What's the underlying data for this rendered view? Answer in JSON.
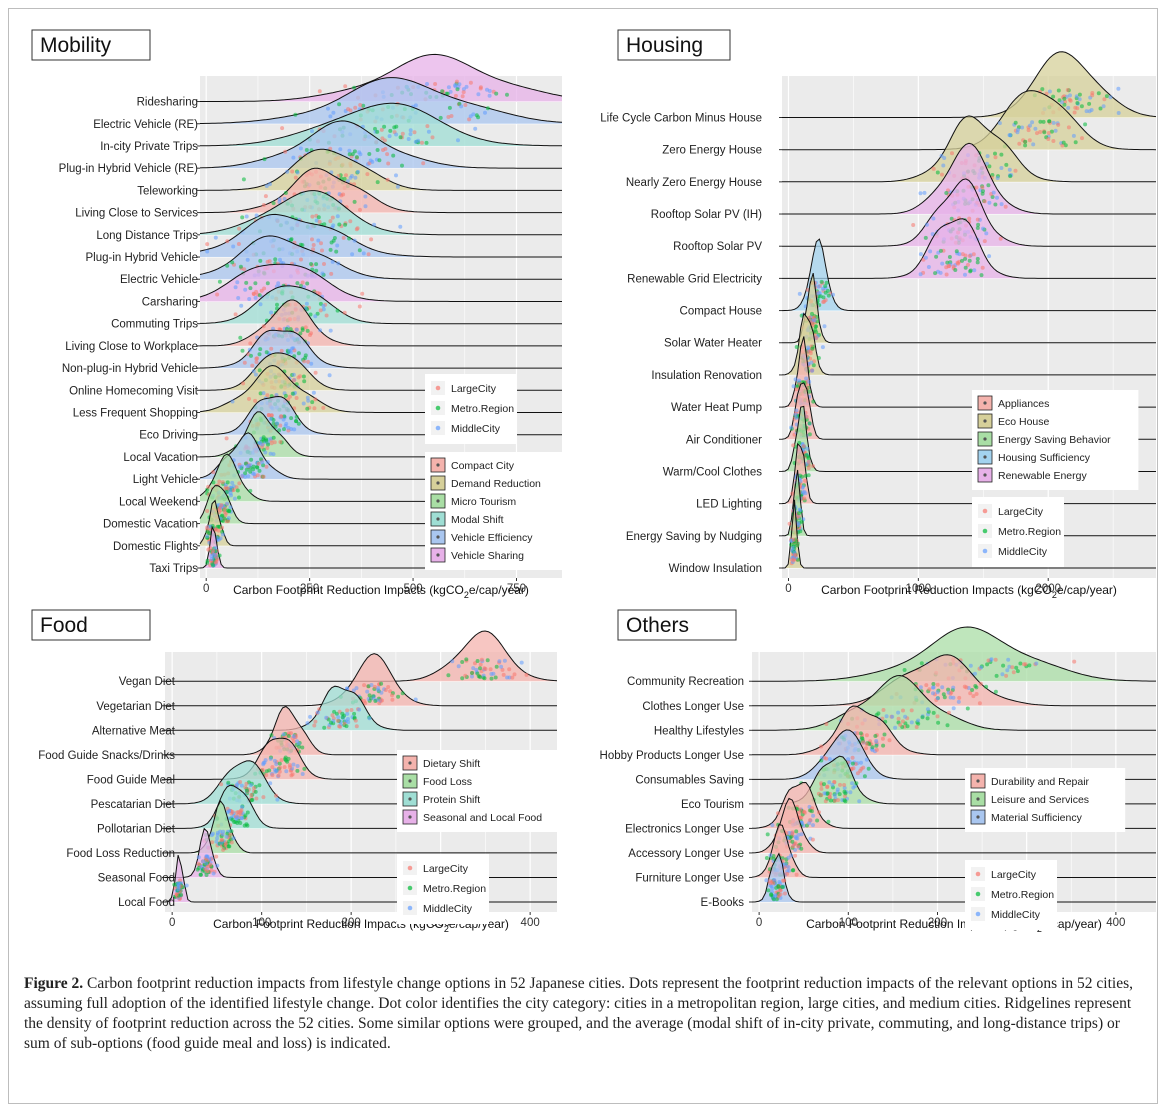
{
  "figure": {
    "label": "Figure 2.",
    "caption": "Carbon footprint reduction impacts from lifestyle change options in 52 Japanese cities. Dots represent the footprint reduction impacts of the relevant options in 52 cities, assuming full adoption of the identified lifestyle change. Dot color identifies the city category: cities in a metropolitan region, large cities, and medium cities. Ridgelines represent the density of footprint reduction across the 52 cities. Some similar options were grouped, and the average (modal shift of in-city private, commuting, and long-distance trips) or sum of sub-options (food guide meal and loss) is indicated."
  },
  "colors": {
    "LargeCity": "#f8766d",
    "Metro.Region": "#00ba38",
    "MiddleCity": "#619cff",
    "panel_bg": "#ebebeb",
    "grid": "#ffffff"
  },
  "chart_data": [
    {
      "type": "ridgeline",
      "title": "Mobility",
      "xlabel_main": "Carbon Footprint Reduction Impacts (kgCO",
      "xlabel_sub": "2",
      "xlabel_tail": "e/cap/year)",
      "xlim": [
        -15,
        860
      ],
      "xticks": [
        0,
        250,
        500,
        750
      ],
      "city_legend": [
        "LargeCity",
        "Metro.Region",
        "MiddleCity"
      ],
      "group_legend": [
        {
          "name": "Compact City",
          "color": "#f4b3ad"
        },
        {
          "name": "Demand Reduction",
          "color": "#d6d09a"
        },
        {
          "name": "Micro Tourism",
          "color": "#a9dea5"
        },
        {
          "name": "Modal Shift",
          "color": "#9fded4"
        },
        {
          "name": "Vehicle Efficiency",
          "color": "#a9c6ef"
        },
        {
          "name": "Vehicle Sharing",
          "color": "#e7b1e8"
        }
      ],
      "rows": [
        {
          "label": "Ridesharing",
          "mean": 560,
          "sd": 145,
          "group": "Vehicle Sharing"
        },
        {
          "label": "Electric Vehicle (RE)",
          "mean": 470,
          "sd": 150,
          "group": "Vehicle Efficiency"
        },
        {
          "label": "In-city Private Trips",
          "mean": 420,
          "sd": 130,
          "group": "Modal Shift"
        },
        {
          "label": "Plug-in Hybrid Vehicle (RE)",
          "mean": 330,
          "sd": 110,
          "group": "Vehicle Efficiency"
        },
        {
          "label": "Teleworking",
          "mean": 300,
          "sd": 80,
          "group": "Demand Reduction"
        },
        {
          "label": "Living Close to Services",
          "mean": 285,
          "sd": 80,
          "group": "Compact City"
        },
        {
          "label": "Long Distance Trips",
          "mean": 240,
          "sd": 95,
          "group": "Modal Shift"
        },
        {
          "label": "Plug-in Hybrid Vehicle",
          "mean": 200,
          "sd": 110,
          "group": "Vehicle Efficiency"
        },
        {
          "label": "Electric Vehicle",
          "mean": 180,
          "sd": 95,
          "group": "Vehicle Efficiency"
        },
        {
          "label": "Carsharing",
          "mean": 175,
          "sd": 90,
          "group": "Vehicle Sharing"
        },
        {
          "label": "Commuting Trips",
          "mean": 210,
          "sd": 70,
          "group": "Modal Shift"
        },
        {
          "label": "Living Close to Workplace",
          "mean": 200,
          "sd": 55,
          "group": "Compact City"
        },
        {
          "label": "Non-plug-in Hybrid Vehicle",
          "mean": 180,
          "sd": 55,
          "group": "Vehicle Efficiency"
        },
        {
          "label": "Online Homecoming Visit",
          "mean": 180,
          "sd": 50,
          "group": "Demand Reduction"
        },
        {
          "label": "Less Frequent Shopping",
          "mean": 165,
          "sd": 65,
          "group": "Demand Reduction"
        },
        {
          "label": "Eco Driving",
          "mean": 160,
          "sd": 45,
          "group": "Vehicle Efficiency"
        },
        {
          "label": "Local Vacation",
          "mean": 135,
          "sd": 40,
          "group": "Micro Tourism"
        },
        {
          "label": "Light Vehicle",
          "mean": 95,
          "sd": 42,
          "group": "Vehicle Efficiency"
        },
        {
          "label": "Local Weekend",
          "mean": 50,
          "sd": 32,
          "group": "Micro Tourism"
        },
        {
          "label": "Domestic Vacation",
          "mean": 30,
          "sd": 22,
          "group": "Micro Tourism"
        },
        {
          "label": "Domestic Flights",
          "mean": 20,
          "sd": 14,
          "group": "Demand Reduction"
        },
        {
          "label": "Taxi Trips",
          "mean": 18,
          "sd": 8,
          "group": "Vehicle Sharing"
        }
      ]
    },
    {
      "type": "ridgeline",
      "title": "Housing",
      "xlabel_main": "Carbon Footprint Reduction Impacts (kgCO",
      "xlabel_sub": "2",
      "xlabel_tail": "e/cap/year)",
      "xlim": [
        -50,
        2830
      ],
      "xticks": [
        0,
        1000,
        2000
      ],
      "city_legend": [
        "LargeCity",
        "Metro.Region",
        "MiddleCity"
      ],
      "group_legend": [
        {
          "name": "Appliances",
          "color": "#f4b3ad"
        },
        {
          "name": "Eco House",
          "color": "#d6d09a"
        },
        {
          "name": "Energy Saving Behavior",
          "color": "#a9dea5"
        },
        {
          "name": "Housing Sufficiency",
          "color": "#a3d3ef"
        },
        {
          "name": "Renewable Energy",
          "color": "#e7b1e8"
        }
      ],
      "rows": [
        {
          "label": "Life Cycle Carbon Minus House",
          "mean": 2150,
          "sd": 230,
          "group": "Eco House"
        },
        {
          "label": "Zero Energy House",
          "mean": 1920,
          "sd": 220,
          "group": "Eco House"
        },
        {
          "label": "Nearly Zero Energy House",
          "mean": 1450,
          "sd": 210,
          "group": "Eco House"
        },
        {
          "label": "Rooftop Solar PV (IH)",
          "mean": 1370,
          "sd": 180,
          "group": "Renewable Energy"
        },
        {
          "label": "Rooftop Solar PV",
          "mean": 1320,
          "sd": 170,
          "group": "Renewable Energy"
        },
        {
          "label": "Renewable Grid Electricity",
          "mean": 1280,
          "sd": 160,
          "group": "Renewable Energy"
        },
        {
          "label": "Compact House",
          "mean": 230,
          "sd": 65,
          "group": "Housing Sufficiency"
        },
        {
          "label": "Solar Water Heater",
          "mean": 180,
          "sd": 40,
          "group": "Eco House"
        },
        {
          "label": "Insulation Renovation",
          "mean": 140,
          "sd": 50,
          "group": "Eco House"
        },
        {
          "label": "Water Heat Pump",
          "mean": 110,
          "sd": 40,
          "group": "Appliances"
        },
        {
          "label": "Air Conditioner",
          "mean": 110,
          "sd": 45,
          "group": "Appliances"
        },
        {
          "label": "Warm/Cool Clothes",
          "mean": 100,
          "sd": 40,
          "group": "Energy Saving Behavior"
        },
        {
          "label": "LED Lighting",
          "mean": 90,
          "sd": 35,
          "group": "Appliances"
        },
        {
          "label": "Energy Saving by Nudging",
          "mean": 65,
          "sd": 25,
          "group": "Energy Saving Behavior"
        },
        {
          "label": "Window Insulation",
          "mean": 45,
          "sd": 20,
          "group": "Eco House"
        }
      ]
    },
    {
      "type": "ridgeline",
      "title": "Food",
      "xlabel_main": "Carbon Footprint Reduction Impacts (kgCO",
      "xlabel_sub": "2",
      "xlabel_tail": "e/cap/year)",
      "xlim": [
        -8,
        430
      ],
      "xticks": [
        0,
        100,
        200,
        300,
        400
      ],
      "city_legend": [
        "LargeCity",
        "Metro.Region",
        "MiddleCity"
      ],
      "group_legend": [
        {
          "name": "Dietary Shift",
          "color": "#f4b3ad"
        },
        {
          "name": "Food Loss",
          "color": "#a9dea5"
        },
        {
          "name": "Protein Shift",
          "color": "#9fded4"
        },
        {
          "name": "Seasonal and Local Food",
          "color": "#e7b1e8"
        }
      ],
      "rows": [
        {
          "label": "Vegan Diet",
          "mean": 345,
          "sd": 28,
          "group": "Dietary Shift"
        },
        {
          "label": "Vegetarian Diet",
          "mean": 225,
          "sd": 22,
          "group": "Dietary Shift"
        },
        {
          "label": "Alternative Meat",
          "mean": 190,
          "sd": 20,
          "group": "Protein Shift"
        },
        {
          "label": "Food Guide Snacks/Drinks",
          "mean": 130,
          "sd": 15,
          "group": "Dietary Shift"
        },
        {
          "label": "Food Guide Meal",
          "mean": 120,
          "sd": 18,
          "group": "Dietary Shift"
        },
        {
          "label": "Pescatarian Diet",
          "mean": 80,
          "sd": 20,
          "group": "Protein Shift"
        },
        {
          "label": "Pollotarian Diet",
          "mean": 70,
          "sd": 15,
          "group": "Protein Shift"
        },
        {
          "label": "Food Loss Reduction",
          "mean": 55,
          "sd": 10,
          "group": "Food Loss"
        },
        {
          "label": "Seasonal Food",
          "mean": 38,
          "sd": 7,
          "group": "Seasonal and Local Food"
        },
        {
          "label": "Local Food",
          "mean": 8,
          "sd": 4,
          "group": "Seasonal and Local Food"
        }
      ]
    },
    {
      "type": "ridgeline",
      "title": "Others",
      "xlabel_main": "Carbon Footprint Reduction Impacts (kgCO",
      "xlabel_sub": "2",
      "xlabel_tail": "e/cap/year)",
      "xlim": [
        -8,
        445
      ],
      "xticks": [
        0,
        100,
        200,
        300,
        400
      ],
      "city_legend": [
        "LargeCity",
        "Metro.Region",
        "MiddleCity"
      ],
      "group_legend": [
        {
          "name": "Durability and Repair",
          "color": "#f4b3ad"
        },
        {
          "name": "Leisure and Services",
          "color": "#a9dea5"
        },
        {
          "name": "Material Sufficiency",
          "color": "#a9c6ef"
        }
      ],
      "rows": [
        {
          "label": "Community Recreation",
          "mean": 240,
          "sd": 60,
          "group": "Leisure and Services"
        },
        {
          "label": "Clothes Longer Use",
          "mean": 200,
          "sd": 40,
          "group": "Durability and Repair"
        },
        {
          "label": "Healthy Lifestyles",
          "mean": 155,
          "sd": 40,
          "group": "Leisure and Services"
        },
        {
          "label": "Hobby Products Longer Use",
          "mean": 115,
          "sd": 25,
          "group": "Durability and Repair"
        },
        {
          "label": "Consumables Saving",
          "mean": 95,
          "sd": 20,
          "group": "Material Sufficiency"
        },
        {
          "label": "Eco Tourism",
          "mean": 85,
          "sd": 18,
          "group": "Leisure and Services"
        },
        {
          "label": "Electronics Longer Use",
          "mean": 45,
          "sd": 15,
          "group": "Durability and Repair"
        },
        {
          "label": "Accessory Longer Use",
          "mean": 35,
          "sd": 12,
          "group": "Durability and Repair"
        },
        {
          "label": "Furniture Longer Use",
          "mean": 25,
          "sd": 10,
          "group": "Durability and Repair"
        },
        {
          "label": "E-Books",
          "mean": 20,
          "sd": 7,
          "group": "Material Sufficiency"
        }
      ]
    }
  ]
}
